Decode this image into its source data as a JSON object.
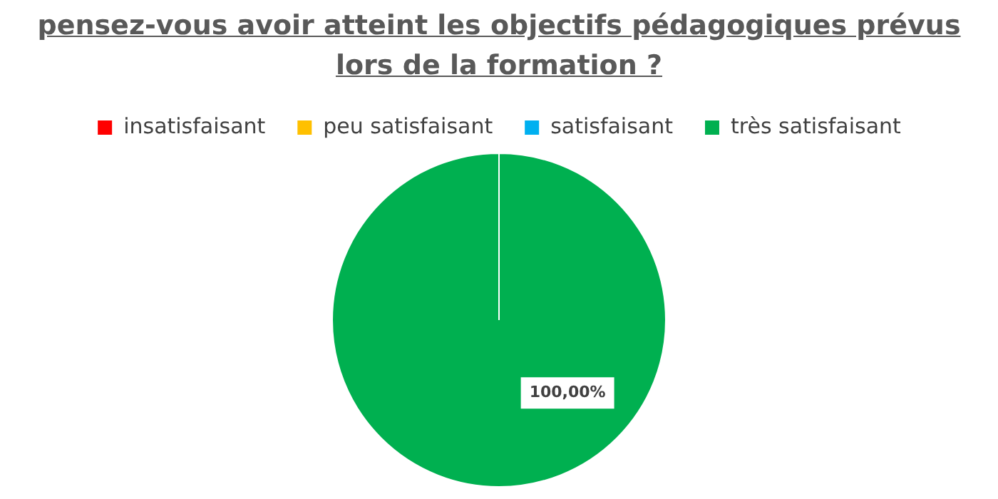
{
  "chart_data": {
    "type": "pie",
    "title": "pensez-vous avoir atteint les objectifs pédagogiques prévus lors de la formation ?",
    "categories": [
      "insatisfaisant",
      "peu satisfaisant",
      "satisfaisant",
      "très satisfaisant"
    ],
    "values": [
      0,
      0,
      0,
      100
    ],
    "colors": [
      "#ff0000",
      "#ffc000",
      "#00b0f0",
      "#00b050"
    ],
    "value_labels": [
      null,
      null,
      null,
      "100,00%"
    ],
    "legend": "top"
  }
}
